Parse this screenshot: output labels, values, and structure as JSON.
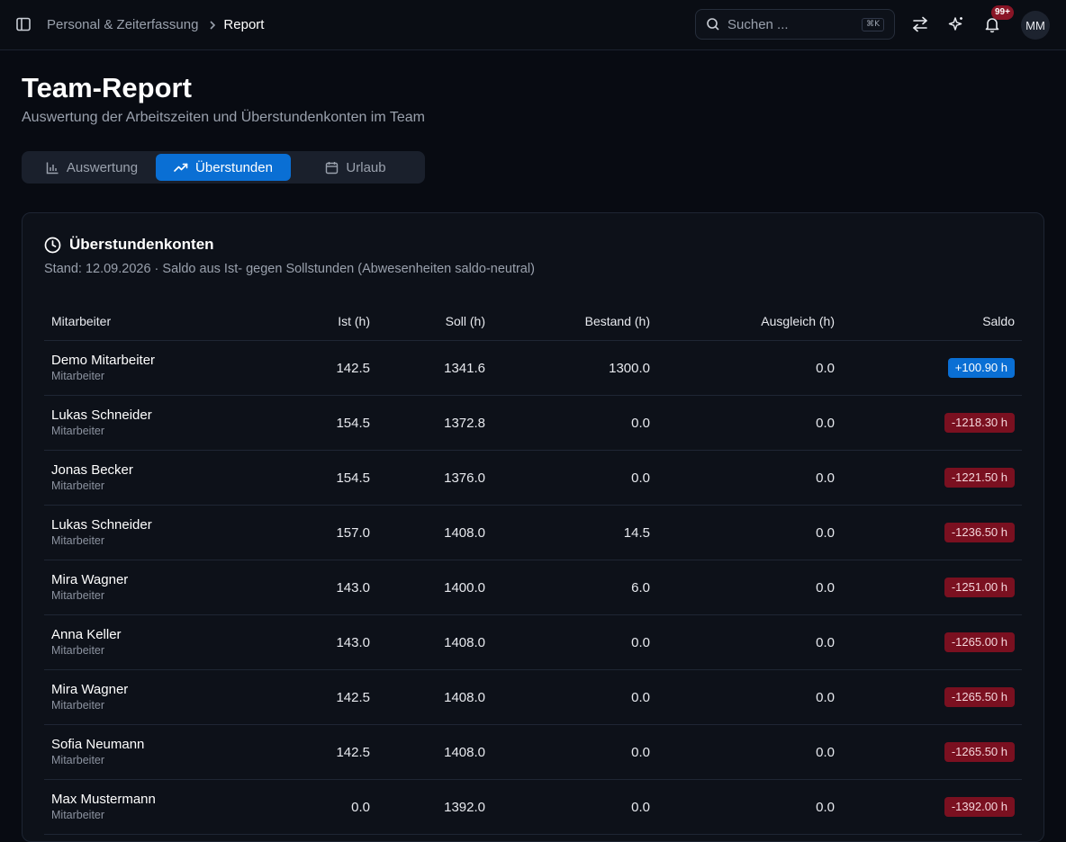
{
  "breadcrumb": {
    "parent": "Personal & Zeiterfassung",
    "current": "Report"
  },
  "search": {
    "placeholder": "Suchen ...",
    "shortcut": "⌘K"
  },
  "notifications": {
    "count": "99+"
  },
  "user": {
    "initials": "MM"
  },
  "page": {
    "title": "Team-Report",
    "subtitle": "Auswertung der Arbeitszeiten und Überstundenkonten im Team"
  },
  "tabs": [
    {
      "label": "Auswertung",
      "icon": "bar-chart-icon"
    },
    {
      "label": "Überstunden",
      "icon": "trending-up-icon",
      "active": true
    },
    {
      "label": "Urlaub",
      "icon": "calendar-icon"
    }
  ],
  "card": {
    "title": "Überstundenkonten",
    "subtitle": "Stand: 12.09.2026 · Saldo aus Ist- gegen Sollstunden (Abwesenheiten saldo-neutral)"
  },
  "table": {
    "headers": {
      "name": "Mitarbeiter",
      "ist": "Ist (h)",
      "soll": "Soll (h)",
      "bestand": "Bestand (h)",
      "ausgleich": "Ausgleich (h)",
      "saldo": "Saldo"
    },
    "rows": [
      {
        "name": "Demo Mitarbeiter",
        "role": "Mitarbeiter",
        "ist": "142.5",
        "soll": "1341.6",
        "bestand": "1300.0",
        "ausgleich": "0.0",
        "saldo": "+100.90 h"
      },
      {
        "name": "Lukas Schneider",
        "role": "Mitarbeiter",
        "ist": "154.5",
        "soll": "1372.8",
        "bestand": "0.0",
        "ausgleich": "0.0",
        "saldo": "-1218.30 h"
      },
      {
        "name": "Jonas Becker",
        "role": "Mitarbeiter",
        "ist": "154.5",
        "soll": "1376.0",
        "bestand": "0.0",
        "ausgleich": "0.0",
        "saldo": "-1221.50 h"
      },
      {
        "name": "Lukas Schneider",
        "role": "Mitarbeiter",
        "ist": "157.0",
        "soll": "1408.0",
        "bestand": "14.5",
        "ausgleich": "0.0",
        "saldo": "-1236.50 h"
      },
      {
        "name": "Mira Wagner",
        "role": "Mitarbeiter",
        "ist": "143.0",
        "soll": "1400.0",
        "bestand": "6.0",
        "ausgleich": "0.0",
        "saldo": "-1251.00 h"
      },
      {
        "name": "Anna Keller",
        "role": "Mitarbeiter",
        "ist": "143.0",
        "soll": "1408.0",
        "bestand": "0.0",
        "ausgleich": "0.0",
        "saldo": "-1265.00 h"
      },
      {
        "name": "Mira Wagner",
        "role": "Mitarbeiter",
        "ist": "142.5",
        "soll": "1408.0",
        "bestand": "0.0",
        "ausgleich": "0.0",
        "saldo": "-1265.50 h"
      },
      {
        "name": "Sofia Neumann",
        "role": "Mitarbeiter",
        "ist": "142.5",
        "soll": "1408.0",
        "bestand": "0.0",
        "ausgleich": "0.0",
        "saldo": "-1265.50 h"
      },
      {
        "name": "Max Mustermann",
        "role": "Mitarbeiter",
        "ist": "0.0",
        "soll": "1392.0",
        "bestand": "0.0",
        "ausgleich": "0.0",
        "saldo": "-1392.00 h"
      }
    ]
  },
  "colors": {
    "accent": "#0a6fd4",
    "negative": "#7a1020",
    "background": "#080b12"
  }
}
